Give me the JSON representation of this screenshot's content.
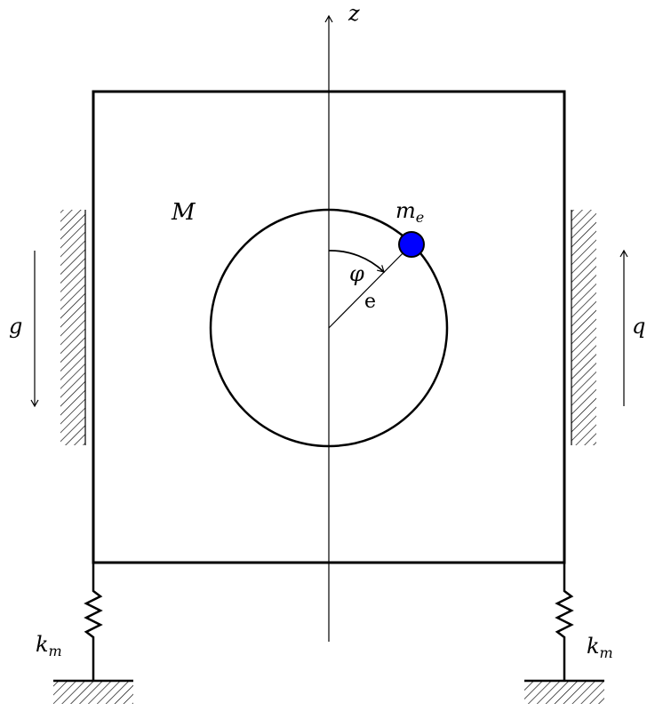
{
  "labels": {
    "z_axis": "z",
    "mass_M": "M",
    "mass_me_main": "m",
    "mass_me_sub": "e",
    "angle": "φ",
    "eccentricity": "e",
    "g": "g",
    "q": "q",
    "spring_left_main": "k",
    "spring_left_sub": "m",
    "spring_right_main": "k",
    "spring_right_sub": "m"
  },
  "colors": {
    "line": "#000000",
    "unbalance_mass": "#0000ff",
    "background": "#ffffff"
  }
}
